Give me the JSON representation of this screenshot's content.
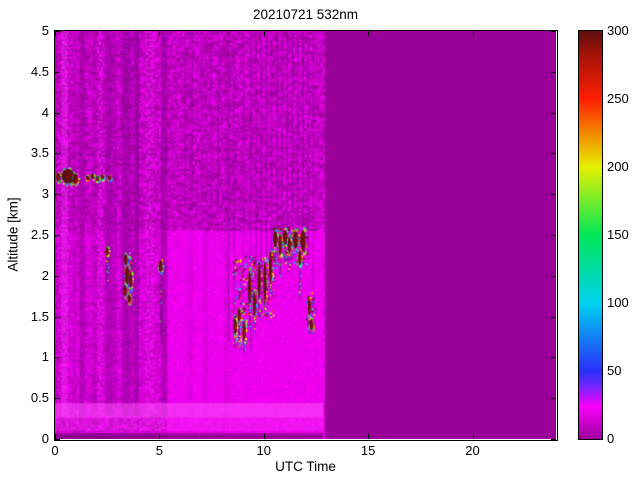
{
  "chart_data": {
    "type": "heatmap",
    "title": "20210721 532nm",
    "xlabel": "UTC Time",
    "ylabel": "Altitude [km]",
    "xlim": [
      0,
      24
    ],
    "ylim": [
      0,
      5
    ],
    "xticks": [
      0,
      5,
      10,
      15,
      20
    ],
    "yticks": [
      0,
      0.5,
      1,
      1.5,
      2,
      2.5,
      3,
      3.5,
      4,
      4.5,
      5
    ],
    "ytick_labels": [
      "0",
      "0.5",
      "1",
      "1.5",
      "2",
      "2.5",
      "3",
      "3.5",
      "4",
      "4.5",
      "5"
    ],
    "colorbar": {
      "min": 0,
      "max": 300,
      "ticks": [
        0,
        50,
        100,
        150,
        200,
        250,
        300
      ],
      "stops": [
        {
          "v": 0,
          "c": "#9C009C"
        },
        {
          "v": 24,
          "c": "#FA00FA"
        },
        {
          "v": 40,
          "c": "#6A28FF"
        },
        {
          "v": 50,
          "c": "#2830F8"
        },
        {
          "v": 100,
          "c": "#00D2F0"
        },
        {
          "v": 150,
          "c": "#00E656"
        },
        {
          "v": 200,
          "c": "#E6F000"
        },
        {
          "v": 250,
          "c": "#FF1E00"
        },
        {
          "v": 282,
          "c": "#A51208"
        },
        {
          "v": 300,
          "c": "#5E1010"
        }
      ]
    },
    "data_time_range": [
      0,
      12.85
    ],
    "colors": {
      "nodata": "#980098",
      "base_left": "#C400C4",
      "base_lower": "#EC10EC",
      "upper_dark": "#A400A4",
      "upper_bright": "#DC00DC",
      "stripe_dark": "#8E008E",
      "stripe_bright": "#FF46FF",
      "ground_bright": "#FF50FF",
      "bottom_dark": "#5A005A",
      "cloud_core": "#5C1010",
      "rim_palette": [
        "#00E0FF",
        "#28E428",
        "#FFF000",
        "#FF3C00",
        "#3050FF",
        "#FF00FF"
      ]
    },
    "stripes_dark": [
      [
        0.0,
        0.12,
        0.22
      ],
      [
        0.85,
        1.02,
        0.18
      ],
      [
        1.15,
        1.45,
        0.38
      ],
      [
        1.8,
        2.0,
        0.22
      ],
      [
        2.42,
        2.72,
        0.42
      ],
      [
        2.72,
        2.95,
        0.28
      ],
      [
        3.2,
        3.55,
        0.48
      ],
      [
        3.55,
        3.72,
        0.3
      ],
      [
        3.78,
        4.02,
        0.48
      ],
      [
        5.1,
        5.38,
        0.42
      ],
      [
        6.4,
        6.6,
        0.13
      ],
      [
        7.1,
        7.35,
        0.1
      ],
      [
        8.1,
        8.35,
        0.12
      ]
    ],
    "stripes_bright": [
      [
        0.3,
        0.62,
        0.3
      ],
      [
        2.05,
        2.3,
        0.13
      ],
      [
        4.3,
        4.75,
        0.12
      ]
    ],
    "thin_gaps": [
      [
        3.93,
        2.3
      ],
      [
        5.1,
        1.15
      ],
      [
        6.2,
        2.6
      ],
      [
        6.55,
        2.8
      ],
      [
        7.0,
        2.7
      ],
      [
        7.45,
        2.6
      ],
      [
        7.8,
        2.8
      ],
      [
        8.28,
        1.2
      ],
      [
        8.55,
        1.3
      ],
      [
        9.0,
        1.25
      ],
      [
        9.35,
        1.1
      ],
      [
        9.6,
        1.55
      ],
      [
        9.85,
        1.75
      ],
      [
        10.1,
        1.8
      ],
      [
        10.35,
        2.1
      ],
      [
        10.6,
        2.5
      ],
      [
        10.85,
        2.4
      ],
      [
        11.1,
        2.45
      ],
      [
        11.35,
        2.3
      ],
      [
        11.6,
        2.45
      ],
      [
        11.85,
        2.5
      ],
      [
        12.1,
        2.2
      ],
      [
        12.35,
        1.6
      ]
    ],
    "ground_band": {
      "bright_y": [
        0.26,
        0.44
      ],
      "haze_y": [
        0.1,
        0.26
      ],
      "dark_y": [
        0.0,
        0.07
      ]
    },
    "clouds": [
      {
        "x": 0.16,
        "y": 3.21,
        "rx": 0.1,
        "ry": 0.05
      },
      {
        "x": 0.62,
        "y": 3.22,
        "rx": 0.3,
        "ry": 0.09
      },
      {
        "x": 0.97,
        "y": 3.19,
        "rx": 0.13,
        "ry": 0.06
      },
      {
        "x": 1.55,
        "y": 3.2,
        "rx": 0.05,
        "ry": 0.03
      },
      {
        "x": 1.78,
        "y": 3.22,
        "rx": 0.04,
        "ry": 0.03
      },
      {
        "x": 2.02,
        "y": 3.19,
        "rx": 0.05,
        "ry": 0.03
      },
      {
        "x": 2.26,
        "y": 3.21,
        "rx": 0.04,
        "ry": 0.03
      },
      {
        "x": 2.6,
        "y": 3.2,
        "rx": 0.04,
        "ry": 0.03
      },
      {
        "x": 2.48,
        "y": 2.3,
        "rx": 0.05,
        "ry": 0.05,
        "tail": 1.9
      },
      {
        "x": 3.38,
        "y": 2.2,
        "rx": 0.08,
        "ry": 0.07
      },
      {
        "x": 3.45,
        "y": 2.0,
        "rx": 0.1,
        "ry": 0.12
      },
      {
        "x": 3.35,
        "y": 1.82,
        "rx": 0.08,
        "ry": 0.07
      },
      {
        "x": 3.62,
        "y": 1.95,
        "rx": 0.06,
        "ry": 0.1,
        "tail": 1.6
      },
      {
        "x": 3.55,
        "y": 1.72,
        "rx": 0.05,
        "ry": 0.05
      },
      {
        "x": 5.05,
        "y": 2.12,
        "rx": 0.09,
        "ry": 0.07,
        "tail": 1.25
      },
      {
        "x": 8.62,
        "y": 1.38,
        "rx": 0.05,
        "ry": 0.1,
        "tail": 1.1
      },
      {
        "x": 8.82,
        "y": 1.52,
        "rx": 0.04,
        "ry": 0.08,
        "tail": 1.2
      },
      {
        "x": 9.05,
        "y": 1.32,
        "rx": 0.04,
        "ry": 0.12,
        "tail": 1.05
      },
      {
        "x": 9.32,
        "y": 1.85,
        "rx": 0.05,
        "ry": 0.2,
        "tail": 1.35
      },
      {
        "x": 9.55,
        "y": 1.65,
        "rx": 0.04,
        "ry": 0.15,
        "tail": 1.3
      },
      {
        "x": 9.78,
        "y": 1.95,
        "rx": 0.05,
        "ry": 0.22,
        "tail": 1.5
      },
      {
        "x": 10.05,
        "y": 1.92,
        "rx": 0.04,
        "ry": 0.25,
        "tail": 1.55
      },
      {
        "x": 10.32,
        "y": 2.1,
        "rx": 0.05,
        "ry": 0.2,
        "tail": 1.75
      },
      {
        "x": 10.55,
        "y": 2.45,
        "rx": 0.1,
        "ry": 0.1,
        "tail": 2.1
      },
      {
        "x": 10.78,
        "y": 2.38,
        "rx": 0.08,
        "ry": 0.13,
        "tail": 2.0
      },
      {
        "x": 11.02,
        "y": 2.47,
        "rx": 0.1,
        "ry": 0.09,
        "tail": 2.15
      },
      {
        "x": 11.22,
        "y": 2.38,
        "rx": 0.06,
        "ry": 0.1,
        "tail": 2.05
      },
      {
        "x": 11.52,
        "y": 2.44,
        "rx": 0.11,
        "ry": 0.11
      },
      {
        "x": 11.72,
        "y": 2.22,
        "rx": 0.06,
        "ry": 0.09,
        "tail": 1.7
      },
      {
        "x": 11.88,
        "y": 2.43,
        "rx": 0.12,
        "ry": 0.13
      },
      {
        "x": 12.18,
        "y": 1.62,
        "rx": 0.06,
        "ry": 0.1,
        "tail": 1.3
      },
      {
        "x": 12.28,
        "y": 1.4,
        "rx": 0.05,
        "ry": 0.07
      }
    ],
    "sprays": [
      {
        "x0": 8.5,
        "x1": 10.45,
        "y0": 1.5,
        "y1": 2.25,
        "n": 220
      },
      {
        "x0": 3.25,
        "x1": 3.7,
        "y0": 1.7,
        "y1": 2.3,
        "n": 80
      },
      {
        "x0": 10.4,
        "x1": 12.1,
        "y0": 2.15,
        "y1": 2.6,
        "n": 150
      },
      {
        "x0": 12.0,
        "x1": 12.45,
        "y0": 1.3,
        "y1": 1.8,
        "n": 60
      },
      {
        "x0": 8.5,
        "x1": 9.15,
        "y0": 1.1,
        "y1": 1.6,
        "n": 60
      }
    ]
  }
}
